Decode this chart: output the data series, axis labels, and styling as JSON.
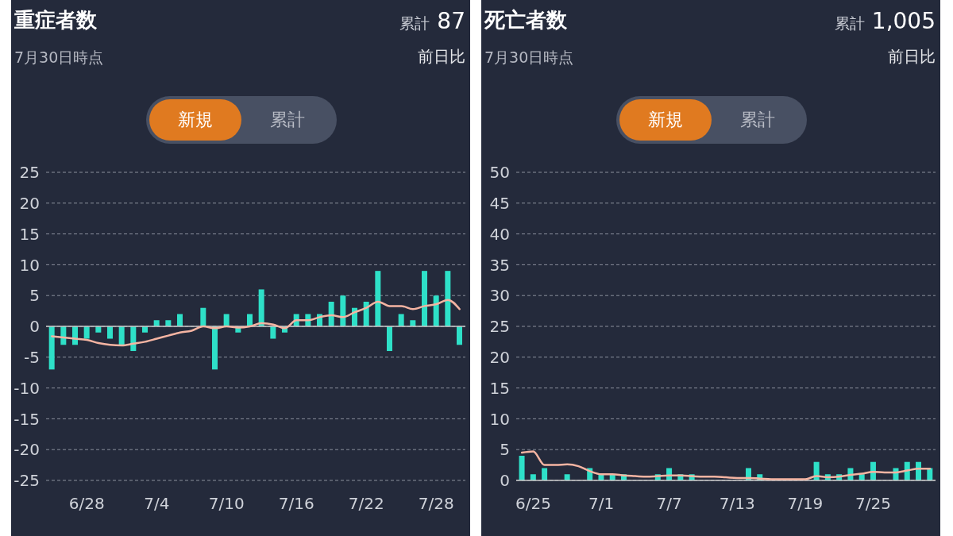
{
  "chart_data": [
    {
      "type": "bar",
      "title": "重症者数",
      "subtitle": "7月30日時点",
      "annotations": [
        "累計 87",
        "前日比",
        "新規",
        "累計"
      ],
      "categories": [
        null,
        null,
        null,
        "6/28",
        null,
        null,
        null,
        null,
        null,
        "7/4",
        null,
        null,
        null,
        null,
        null,
        "7/10",
        null,
        null,
        null,
        null,
        null,
        "7/16",
        null,
        null,
        null,
        null,
        null,
        "7/22",
        null,
        null,
        null,
        null,
        null,
        "7/28",
        null,
        null
      ],
      "series": [
        {
          "color": "#2ee0c8",
          "values": [
            -7,
            -3,
            -3,
            -2,
            -1,
            -2,
            -3,
            -4,
            -1,
            1,
            1,
            2,
            0,
            3,
            -7,
            2,
            -1,
            2,
            6,
            -2,
            -1,
            2,
            2,
            2,
            4,
            5,
            3,
            4,
            9,
            -4,
            2,
            1,
            9,
            5,
            9,
            -3
          ]
        },
        {
          "type": "line",
          "color": "#f5b4a2",
          "values": [
            -1.6,
            -1.8,
            -2,
            -2.2,
            -2.7,
            -3,
            -3.1,
            -2.8,
            -2.5,
            -2,
            -1.5,
            -1,
            -0.7,
            0,
            -0.3,
            0,
            -0.2,
            0,
            0.5,
            0.3,
            -0.3,
            1,
            1,
            1.5,
            1.8,
            1.5,
            2.3,
            3,
            4,
            3.3,
            3.3,
            2.8,
            3.3,
            3.6,
            4.3,
            2.8
          ]
        }
      ],
      "ylim": [
        -25,
        25
      ],
      "yticks": [
        -25,
        -20,
        -15,
        -10,
        -5,
        0,
        5,
        10,
        15,
        20,
        25
      ],
      "grid": "y",
      "legend": false,
      "marker": "none"
    },
    {
      "type": "bar",
      "title": "死亡者数",
      "subtitle": "7月30日時点",
      "annotations": [
        "累計 1,005",
        "前日比",
        "新規",
        "累計"
      ],
      "categories": [
        null,
        "6/25",
        null,
        null,
        null,
        null,
        null,
        "7/1",
        null,
        null,
        null,
        null,
        null,
        "7/7",
        null,
        null,
        null,
        null,
        null,
        "7/13",
        null,
        null,
        null,
        null,
        null,
        "7/19",
        null,
        null,
        null,
        null,
        null,
        "7/25",
        null,
        null,
        null,
        null,
        null
      ],
      "series": [
        {
          "color": "#2ee0c8",
          "values": [
            4,
            1,
            2,
            0,
            1,
            0,
            2,
            1,
            1,
            1,
            0,
            0,
            1,
            2,
            1,
            1,
            0,
            0,
            0,
            0,
            2,
            1,
            0,
            0,
            0,
            0,
            3,
            1,
            1,
            2,
            1,
            3,
            0,
            2,
            3,
            3,
            2
          ]
        },
        {
          "type": "line",
          "color": "#f5b4a2",
          "values": [
            4.5,
            4.7,
            2.5,
            2.5,
            2.6,
            2.3,
            1.5,
            1,
            1,
            0.8,
            0.7,
            0.6,
            0.7,
            0.8,
            0.8,
            0.7,
            0.6,
            0.6,
            0.5,
            0.4,
            0.4,
            0.3,
            0.2,
            0.2,
            0.2,
            0.2,
            0.7,
            0.5,
            0.6,
            0.9,
            1.1,
            1.4,
            1.3,
            1.3,
            1.6,
            1.9,
            1.9
          ]
        }
      ],
      "ylim": [
        0,
        50
      ],
      "yticks": [
        0,
        5,
        10,
        15,
        20,
        25,
        30,
        35,
        40,
        45,
        50
      ],
      "grid": "y",
      "legend": false,
      "marker": "none"
    }
  ]
}
